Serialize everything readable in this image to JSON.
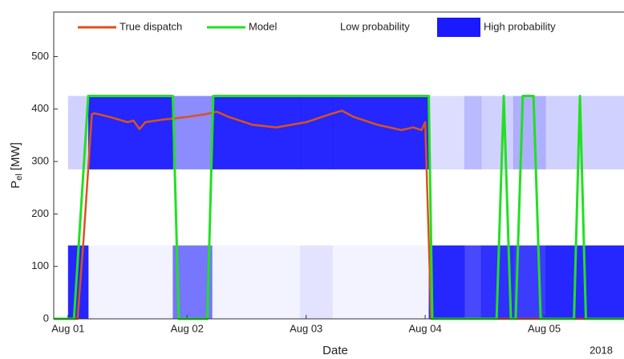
{
  "chart_data": {
    "type": "line",
    "ylabel": "P",
    "ylabel_sub": "el",
    "ylabel_unit": "[MW]",
    "xlabel": "Date",
    "year_label": "2018",
    "xlim": [
      -0.12,
      4.67
    ],
    "xticks": [
      {
        "value": 0,
        "label": "Aug 01"
      },
      {
        "value": 1,
        "label": "Aug 02"
      },
      {
        "value": 2,
        "label": "Aug 03"
      },
      {
        "value": 3,
        "label": "Aug 04"
      },
      {
        "value": 4,
        "label": "Aug 05"
      }
    ],
    "ylim": [
      0,
      585
    ],
    "yticks": [
      0,
      100,
      200,
      300,
      400,
      500
    ],
    "legend": "top",
    "heatmap": {
      "color": "#1a1aff",
      "low_label": "Low probability",
      "high_label": "High probability",
      "x_edges": [
        -0.12,
        0,
        0.17,
        0.88,
        1.21,
        1.95,
        2.22,
        3.03,
        3.33,
        3.47,
        3.74,
        4.01,
        4.67
      ],
      "rows": [
        {
          "range": [
            285,
            425
          ],
          "values": [
            0,
            0.2,
            0.95,
            0.5,
            0.95,
            0.95,
            0.95,
            0.15,
            0.3,
            0.2,
            0.35,
            0.2
          ]
        },
        {
          "range": [
            0,
            140
          ],
          "values": [
            0,
            0.95,
            0.05,
            0.6,
            0.05,
            0.12,
            0.05,
            0.95,
            0.8,
            0.9,
            0.85,
            0.95
          ]
        }
      ]
    },
    "series": [
      {
        "name": "True dispatch",
        "color": "#d95319",
        "x": [
          -0.12,
          0.08,
          0.13,
          0.2,
          0.22,
          0.35,
          0.5,
          0.55,
          0.6,
          0.65,
          0.8,
          1.0,
          1.15,
          1.25,
          1.35,
          1.55,
          1.75,
          2.0,
          2.2,
          2.3,
          2.4,
          2.6,
          2.8,
          2.9,
          2.97,
          3.0,
          3.05,
          4.67
        ],
        "values": [
          0,
          0,
          150,
          390,
          392,
          385,
          375,
          378,
          362,
          375,
          380,
          385,
          390,
          395,
          385,
          370,
          365,
          375,
          390,
          397,
          385,
          370,
          360,
          365,
          360,
          375,
          0,
          0
        ]
      },
      {
        "name": "Model",
        "color": "#22e022",
        "x": [
          -0.12,
          0.05,
          0.17,
          0.88,
          0.93,
          1.17,
          1.22,
          3.03,
          3.06,
          3.6,
          3.66,
          3.72,
          3.76,
          3.82,
          3.91,
          3.97,
          4.25,
          4.3,
          4.35,
          4.67
        ],
        "values": [
          0,
          0,
          425,
          425,
          0,
          0,
          425,
          425,
          0,
          0,
          425,
          0,
          0,
          425,
          425,
          0,
          0,
          425,
          0,
          0
        ]
      }
    ]
  }
}
